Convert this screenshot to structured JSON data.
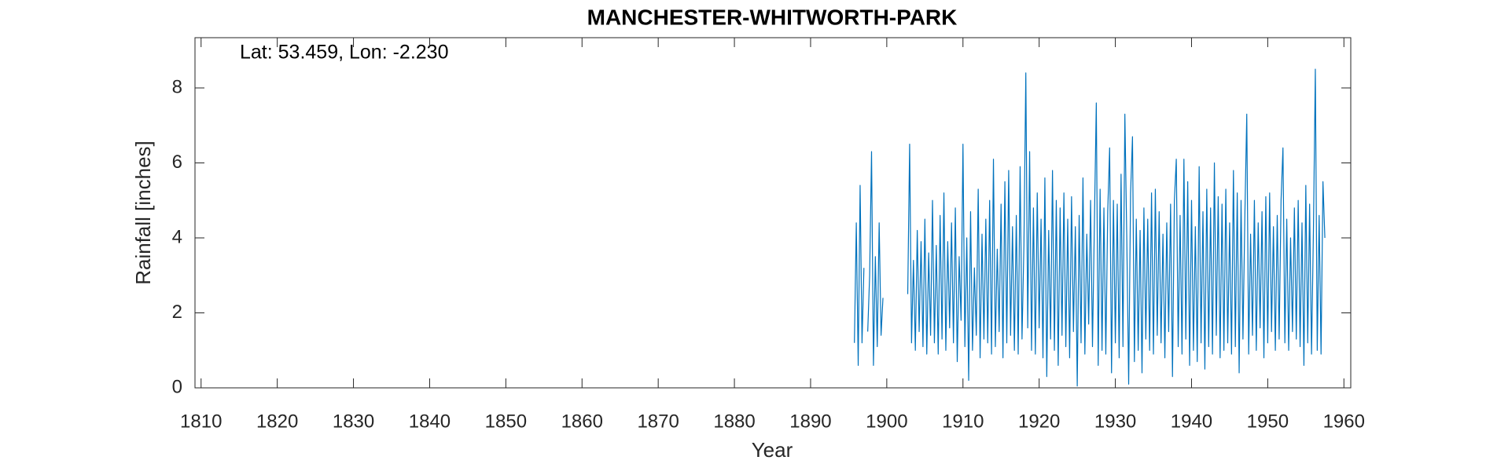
{
  "chart_data": {
    "type": "line",
    "title": "MANCHESTER-WHITWORTH-PARK",
    "annotation": "Lat: 53.459, Lon: -2.230",
    "xlabel": "Year",
    "ylabel": "Rainfall [inches]",
    "xlim": [
      1809.2,
      1960.9
    ],
    "ylim": [
      0,
      9.34
    ],
    "xticks": [
      1810,
      1820,
      1830,
      1840,
      1850,
      1860,
      1870,
      1880,
      1890,
      1900,
      1910,
      1920,
      1930,
      1940,
      1950,
      1960
    ],
    "yticks": [
      0,
      2,
      4,
      6,
      8
    ],
    "x": [
      1895.75,
      1896,
      1896.25,
      1896.5,
      1896.75,
      1897,
      1897.25,
      1897.5,
      1897.75,
      1898,
      1898.25,
      1898.5,
      1898.75,
      1899,
      1899.25,
      1899.5,
      1899.75,
      1902.75,
      1903,
      1903.25,
      1903.5,
      1903.75,
      1904,
      1904.25,
      1904.5,
      1904.75,
      1905,
      1905.25,
      1905.5,
      1905.75,
      1906,
      1906.25,
      1906.5,
      1906.75,
      1907,
      1907.25,
      1907.5,
      1907.75,
      1908,
      1908.25,
      1908.5,
      1908.75,
      1909,
      1909.25,
      1909.5,
      1909.75,
      1910,
      1910.25,
      1910.5,
      1910.75,
      1911,
      1911.25,
      1911.5,
      1911.75,
      1912,
      1912.25,
      1912.5,
      1912.75,
      1913,
      1913.25,
      1913.5,
      1913.75,
      1914,
      1914.25,
      1914.5,
      1914.75,
      1915,
      1915.25,
      1915.5,
      1915.75,
      1916,
      1916.25,
      1916.5,
      1916.75,
      1917,
      1917.25,
      1917.5,
      1917.75,
      1918,
      1918.25,
      1918.5,
      1918.75,
      1919,
      1919.25,
      1919.5,
      1919.75,
      1920,
      1920.25,
      1920.5,
      1920.75,
      1921,
      1921.25,
      1921.5,
      1921.75,
      1922,
      1922.25,
      1922.5,
      1922.75,
      1923,
      1923.25,
      1923.5,
      1923.75,
      1924,
      1924.25,
      1924.5,
      1924.75,
      1925,
      1925.25,
      1925.5,
      1925.75,
      1926,
      1926.25,
      1926.5,
      1926.75,
      1927,
      1927.25,
      1927.5,
      1927.75,
      1928,
      1928.25,
      1928.5,
      1928.75,
      1929,
      1929.25,
      1929.5,
      1929.75,
      1930,
      1930.25,
      1930.5,
      1930.75,
      1931,
      1931.25,
      1931.5,
      1931.75,
      1932,
      1932.25,
      1932.5,
      1932.75,
      1933,
      1933.25,
      1933.5,
      1933.75,
      1934,
      1934.25,
      1934.5,
      1934.75,
      1935,
      1935.25,
      1935.5,
      1935.75,
      1936,
      1936.25,
      1936.5,
      1936.75,
      1937,
      1937.25,
      1937.5,
      1937.75,
      1938,
      1938.25,
      1938.5,
      1938.75,
      1939,
      1939.25,
      1939.5,
      1939.75,
      1940,
      1940.25,
      1940.5,
      1940.75,
      1941,
      1941.25,
      1941.5,
      1941.75,
      1942,
      1942.25,
      1942.5,
      1942.75,
      1943,
      1943.25,
      1943.5,
      1943.75,
      1944,
      1944.25,
      1944.5,
      1944.75,
      1945,
      1945.25,
      1945.5,
      1945.75,
      1946,
      1946.25,
      1946.5,
      1946.75,
      1947,
      1947.25,
      1947.5,
      1947.75,
      1948,
      1948.25,
      1948.5,
      1948.75,
      1949,
      1949.25,
      1949.5,
      1949.75,
      1950,
      1950.25,
      1950.5,
      1950.75,
      1951,
      1951.25,
      1951.5,
      1951.75,
      1952,
      1952.25,
      1952.5,
      1952.75,
      1953,
      1953.25,
      1953.5,
      1953.75,
      1954,
      1954.25,
      1954.5,
      1954.75,
      1955,
      1955.25,
      1955.5,
      1955.75,
      1956,
      1956.25,
      1956.5,
      1956.75,
      1957,
      1957.25,
      1957.5
    ],
    "series": [
      {
        "color": "#0072bd",
        "values": [
          1.2,
          4.4,
          0.6,
          5.4,
          1.2,
          3.2,
          null,
          1.5,
          3.0,
          6.3,
          0.6,
          3.5,
          1.1,
          4.4,
          1.4,
          2.4,
          null,
          2.5,
          6.5,
          1.2,
          3.4,
          1.0,
          4.2,
          1.5,
          3.9,
          1.1,
          4.5,
          0.9,
          3.6,
          1.4,
          5.0,
          1.2,
          3.8,
          0.9,
          4.6,
          1.3,
          5.2,
          1.0,
          3.9,
          1.6,
          4.4,
          1.2,
          4.8,
          0.7,
          3.5,
          1.8,
          6.5,
          1.1,
          4.0,
          0.2,
          4.7,
          1.0,
          3.2,
          1.4,
          5.3,
          0.8,
          4.1,
          1.3,
          4.5,
          1.2,
          5.0,
          0.9,
          6.1,
          1.1,
          3.7,
          1.5,
          4.9,
          0.8,
          5.5,
          1.2,
          5.8,
          1.4,
          4.3,
          1.0,
          4.6,
          0.9,
          5.9,
          1.3,
          3.8,
          8.4,
          1.6,
          6.3,
          1.0,
          4.8,
          0.9,
          5.2,
          1.6,
          4.5,
          0.8,
          5.6,
          0.3,
          4.2,
          1.3,
          5.8,
          1.0,
          5.0,
          0.6,
          4.8,
          1.4,
          5.2,
          1.1,
          4.5,
          0.8,
          5.1,
          1.5,
          4.3,
          0.05,
          4.6,
          1.2,
          5.6,
          0.9,
          4.1,
          1.7,
          5.0,
          1.1,
          4.4,
          7.6,
          0.6,
          5.3,
          1.0,
          4.8,
          0.9,
          4.7,
          6.4,
          0.4,
          5.0,
          1.2,
          4.9,
          0.8,
          5.7,
          1.1,
          7.3,
          4.0,
          0.1,
          5.2,
          6.7,
          0.7,
          4.5,
          1.0,
          4.2,
          0.4,
          4.8,
          1.3,
          4.5,
          1.0,
          5.2,
          0.9,
          5.3,
          1.4,
          4.7,
          1.2,
          4.1,
          0.8,
          4.4,
          1.5,
          4.9,
          0.3,
          5.0,
          6.1,
          1.1,
          4.6,
          0.9,
          6.1,
          1.3,
          5.5,
          0.6,
          5.0,
          1.0,
          4.3,
          0.7,
          5.9,
          1.2,
          4.7,
          0.5,
          5.3,
          1.1,
          4.8,
          0.9,
          6.0,
          1.4,
          5.1,
          0.8,
          4.9,
          1.0,
          5.3,
          1.2,
          4.4,
          0.9,
          5.8,
          1.1,
          5.2,
          0.4,
          5.0,
          1.3,
          4.6,
          7.3,
          0.9,
          4.1,
          1.4,
          5.0,
          1.0,
          4.4,
          1.6,
          4.7,
          0.8,
          5.1,
          1.2,
          5.2,
          1.5,
          4.3,
          1.0,
          4.6,
          1.3,
          5.0,
          6.4,
          1.2,
          4.5,
          1.0,
          4.0,
          1.5,
          4.8,
          1.3,
          5.0,
          1.1,
          4.4,
          0.6,
          5.4,
          1.2,
          4.9,
          0.9,
          4.2,
          8.5,
          1.0,
          4.6,
          0.9,
          5.5,
          4.0
        ]
      }
    ]
  }
}
